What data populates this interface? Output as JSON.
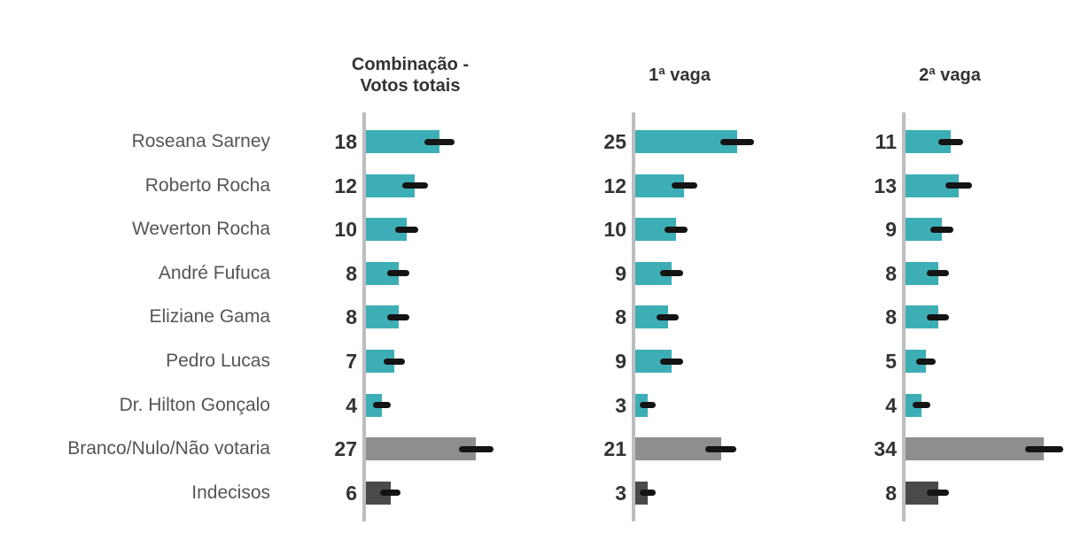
{
  "chart_data": {
    "type": "bar",
    "orientation": "horizontal",
    "title": "",
    "categories": [
      "Roseana Sarney",
      "Roberto Rocha",
      "Weverton Rocha",
      "André Fufuca",
      "Eliziane Gama",
      "Pedro Lucas",
      "Dr. Hilton Gonçalo",
      "Branco/Nulo/Não votaria",
      "Indecisos"
    ],
    "series": [
      {
        "name": "Combinação - Votos totais",
        "values": [
          18,
          12,
          10,
          8,
          8,
          7,
          4,
          27,
          6
        ]
      },
      {
        "name": "1ª vaga",
        "values": [
          25,
          12,
          10,
          9,
          8,
          9,
          3,
          21,
          3
        ]
      },
      {
        "name": "2ª vaga",
        "values": [
          11,
          13,
          9,
          8,
          8,
          5,
          4,
          34,
          8
        ]
      }
    ],
    "value_labels_position": "left-of-axis",
    "error_bars": true,
    "xlim": [
      0,
      40
    ],
    "grid": false,
    "legend": false
  },
  "panels": [
    {
      "title": "Combinação -\nVotos totais"
    },
    {
      "title": "1ª vaga"
    },
    {
      "title": "2ª vaga"
    }
  ],
  "category_styles": [
    "teal",
    "teal",
    "teal",
    "teal",
    "teal",
    "teal",
    "teal",
    "gray",
    "dark"
  ],
  "colors": {
    "candidate_bar": "#3EAEB6",
    "blank_null_bar": "#8E8E8E",
    "undecided_bar": "#4A4A4A",
    "error_bar": "#141414",
    "axis_line": "#BDBDBD",
    "value_text": "#333333",
    "label_text": "#555555",
    "header_text": "#333333",
    "background": "#FFFFFF"
  }
}
